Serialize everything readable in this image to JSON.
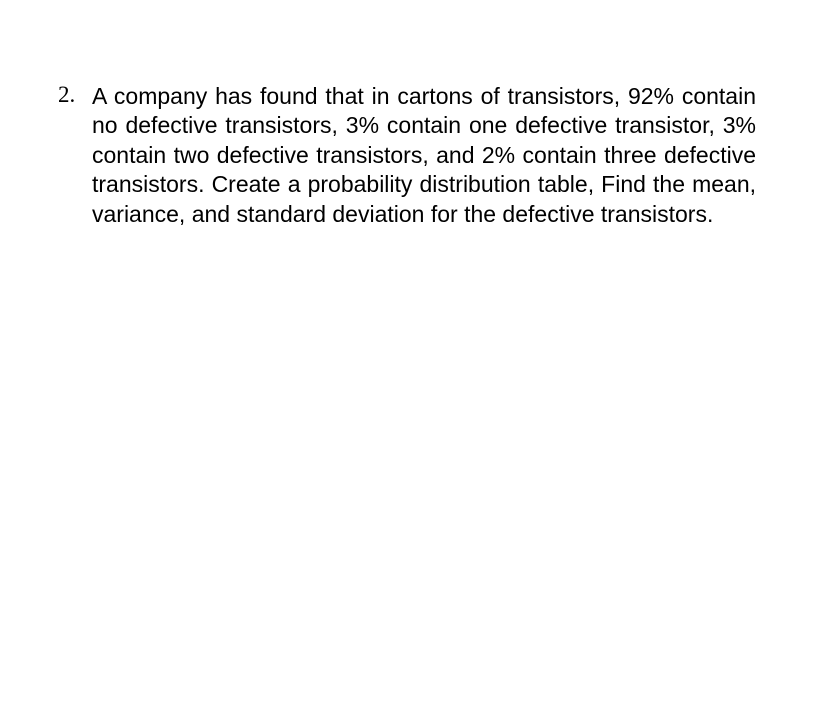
{
  "question": {
    "number": "2.",
    "text": "A company has found that in cartons of transistors, 92% contain no defective transistors, 3% contain one defective transistor, 3% contain two defective transistors, and 2% contain three defective transistors. Create a probability distribution table, Find the mean, variance, and standard deviation for the defective transistors."
  },
  "styling": {
    "background_color": "#ffffff",
    "text_color": "#000000",
    "number_font": "Times New Roman",
    "body_font": "Arial",
    "font_size": 23,
    "line_height": 1.28,
    "text_align": "justify"
  }
}
